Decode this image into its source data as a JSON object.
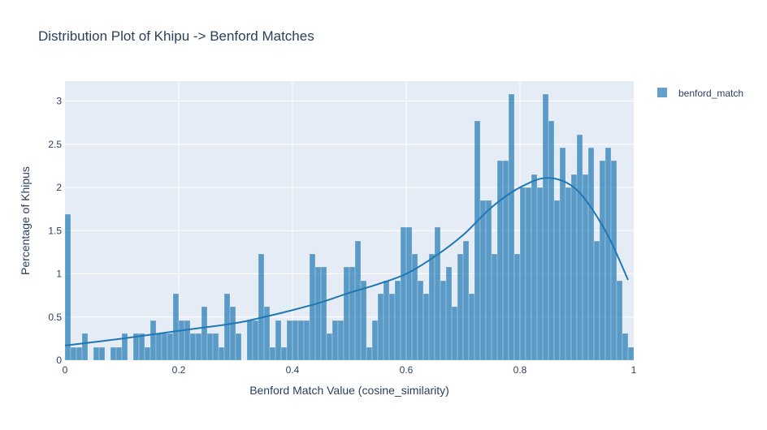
{
  "chart_data": {
    "type": "bar",
    "title": "Distribution Plot of Khipu -> Benford Matches",
    "xlabel": "Benford Match Value (cosine_similarity)",
    "ylabel": "Percentage of Khipus",
    "xlim": [
      0,
      1
    ],
    "ylim": [
      0,
      3.25
    ],
    "xticks": [
      "0",
      "0.2",
      "0.4",
      "0.6",
      "0.8",
      "1"
    ],
    "yticks": [
      "0",
      "0.5",
      "1",
      "1.5",
      "2",
      "2.5",
      "3"
    ],
    "grid": true,
    "legend_placement": "top-right",
    "bin_width": 0.01,
    "series": [
      {
        "name": "benford_match",
        "type": "histogram",
        "color": "#1f77b4",
        "bin_starts_from": 0,
        "values": [
          1.69,
          0.15,
          0.15,
          0.31,
          0,
          0.15,
          0.15,
          0,
          0.15,
          0.15,
          0.31,
          0,
          0.31,
          0.31,
          0.15,
          0.46,
          0.31,
          0.31,
          0.31,
          0.77,
          0.46,
          0.46,
          0.31,
          0.31,
          0.62,
          0.31,
          0.31,
          0.15,
          0.77,
          0.62,
          0.31,
          0,
          0.46,
          0.46,
          1.23,
          0.62,
          0.15,
          0.46,
          0.15,
          0.46,
          0.46,
          0.46,
          0.46,
          1.23,
          1.08,
          1.08,
          0.31,
          0.46,
          0.46,
          1.08,
          1.08,
          1.38,
          0.92,
          0.15,
          0.46,
          0.77,
          0.92,
          0.77,
          0.92,
          1.54,
          1.54,
          1.23,
          0.92,
          0.77,
          1.23,
          1.54,
          0.92,
          1.08,
          0.62,
          1.23,
          1.38,
          0.77,
          2.77,
          1.85,
          1.85,
          1.23,
          2.31,
          2.31,
          3.08,
          1.23,
          2.0,
          2.0,
          2.15,
          2.0,
          3.08,
          2.77,
          1.85,
          2.46,
          2.0,
          2.15,
          2.61,
          2.15,
          2.46,
          1.38,
          2.31,
          2.46,
          2.31,
          0.92,
          0.31,
          0.15
        ]
      },
      {
        "type": "kde-line",
        "color": "#1f77b4",
        "x": [
          0,
          0.1,
          0.2,
          0.3,
          0.35,
          0.4,
          0.45,
          0.5,
          0.55,
          0.6,
          0.65,
          0.7,
          0.75,
          0.8,
          0.85,
          0.9,
          0.95,
          0.99
        ],
        "y": [
          0.17,
          0.25,
          0.34,
          0.43,
          0.5,
          0.58,
          0.67,
          0.78,
          0.88,
          1.0,
          1.2,
          1.45,
          1.77,
          2.0,
          2.11,
          1.97,
          1.5,
          0.93
        ]
      }
    ]
  }
}
